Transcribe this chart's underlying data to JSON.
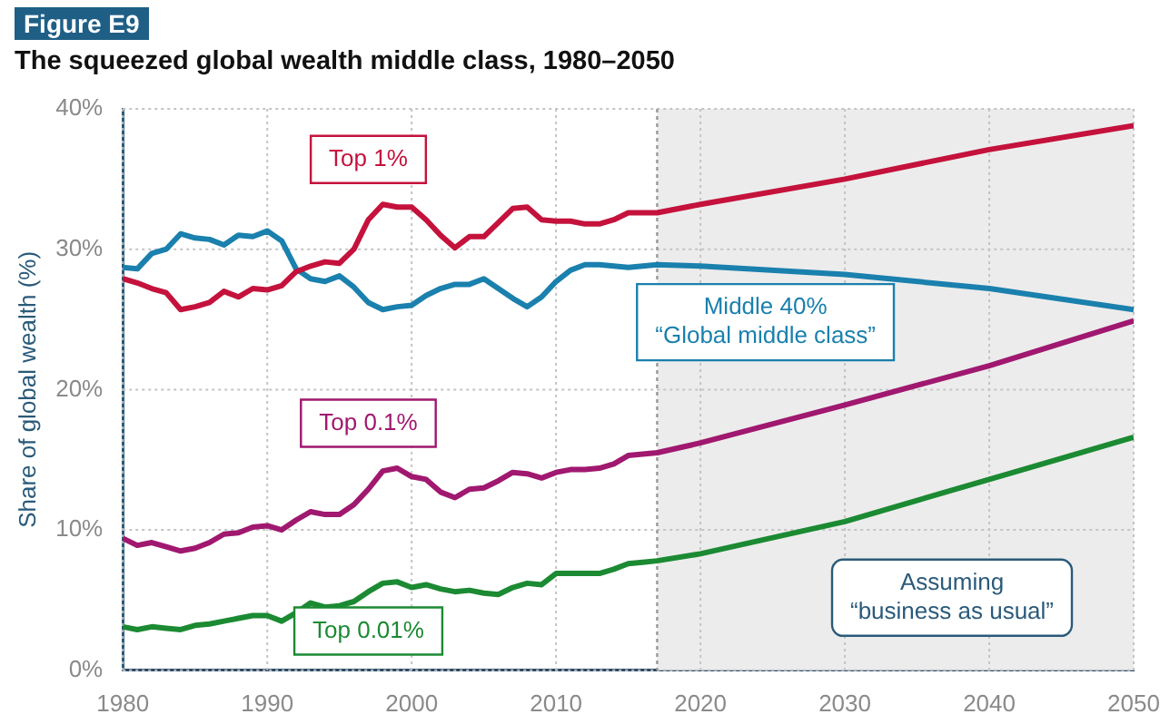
{
  "chart_data": {
    "type": "line",
    "title": "Figure E9",
    "subtitle": "The squeezed global wealth middle class, 1980–2050",
    "ylabel": "Share of global wealth (%)",
    "x": [
      1980,
      1981,
      1982,
      1983,
      1984,
      1985,
      1986,
      1987,
      1988,
      1989,
      1990,
      1991,
      1992,
      1993,
      1994,
      1995,
      1996,
      1997,
      1998,
      1999,
      2000,
      2001,
      2002,
      2003,
      2004,
      2005,
      2006,
      2007,
      2008,
      2009,
      2010,
      2011,
      2012,
      2013,
      2014,
      2015,
      2016,
      2017,
      2020,
      2030,
      2040,
      2050
    ],
    "series": [
      {
        "name": "Top 1%",
        "color": "#c4123c",
        "values": [
          27.9,
          27.6,
          27.2,
          26.9,
          25.7,
          25.9,
          26.2,
          27.0,
          26.6,
          27.2,
          27.1,
          27.4,
          28.4,
          28.8,
          29.1,
          29.0,
          30.0,
          32.1,
          33.2,
          33.0,
          33.0,
          32.1,
          31.0,
          30.1,
          30.9,
          30.9,
          31.9,
          32.9,
          33.0,
          32.1,
          32.0,
          32.0,
          31.8,
          31.8,
          32.1,
          32.6,
          32.6,
          32.6,
          33.2,
          35.0,
          37.1,
          38.8
        ]
      },
      {
        "name": "Middle 40%\n“Global middle class”",
        "color": "#1a80ad",
        "values": [
          28.7,
          28.6,
          29.7,
          30.0,
          31.1,
          30.8,
          30.7,
          30.3,
          31.0,
          30.9,
          31.3,
          30.6,
          28.6,
          27.9,
          27.7,
          28.1,
          27.3,
          26.2,
          25.7,
          25.9,
          26.0,
          26.7,
          27.2,
          27.5,
          27.5,
          27.9,
          27.2,
          26.5,
          25.9,
          26.6,
          27.7,
          28.5,
          28.9,
          28.9,
          28.8,
          28.7,
          28.8,
          28.9,
          28.8,
          28.2,
          27.2,
          25.7
        ]
      },
      {
        "name": "Top 0.1%",
        "color": "#a0186f",
        "values": [
          9.4,
          8.9,
          9.1,
          8.8,
          8.5,
          8.7,
          9.1,
          9.7,
          9.8,
          10.2,
          10.3,
          10.0,
          10.7,
          11.3,
          11.1,
          11.1,
          11.8,
          12.9,
          14.2,
          14.4,
          13.8,
          13.6,
          12.7,
          12.3,
          12.9,
          13.0,
          13.5,
          14.1,
          14.0,
          13.7,
          14.1,
          14.3,
          14.3,
          14.4,
          14.7,
          15.3,
          15.4,
          15.5,
          16.2,
          18.9,
          21.7,
          24.9
        ]
      },
      {
        "name": "Top 0.01%",
        "color": "#1b8a32",
        "values": [
          3.1,
          2.9,
          3.1,
          3.0,
          2.9,
          3.2,
          3.3,
          3.5,
          3.7,
          3.9,
          3.9,
          3.5,
          4.1,
          4.8,
          4.5,
          4.6,
          4.9,
          5.6,
          6.2,
          6.3,
          5.9,
          6.1,
          5.8,
          5.6,
          5.7,
          5.5,
          5.4,
          5.9,
          6.2,
          6.1,
          6.9,
          6.9,
          6.9,
          6.9,
          7.2,
          7.6,
          7.7,
          7.8,
          8.3,
          10.6,
          13.6,
          16.6
        ]
      }
    ],
    "xlim": [
      1980,
      2050
    ],
    "xticks": [
      1980,
      1990,
      2000,
      2010,
      2020,
      2030,
      2040,
      2050
    ],
    "ylim": [
      0,
      40
    ],
    "yticks": [
      {
        "value": 0,
        "label": "0%"
      },
      {
        "value": 10,
        "label": "10%"
      },
      {
        "value": 20,
        "label": "20%"
      },
      {
        "value": 30,
        "label": "30%"
      },
      {
        "value": 40,
        "label": "40%"
      }
    ],
    "grid": true,
    "bands": [
      {
        "axis": "x",
        "from": 2017,
        "to": 2050,
        "label": "Assuming\n“business as usual”",
        "color": "#ececec"
      }
    ],
    "ref_lines": [
      {
        "axis": "x",
        "value": 2017,
        "line_style": "dotted",
        "color": "#999999"
      }
    ]
  }
}
